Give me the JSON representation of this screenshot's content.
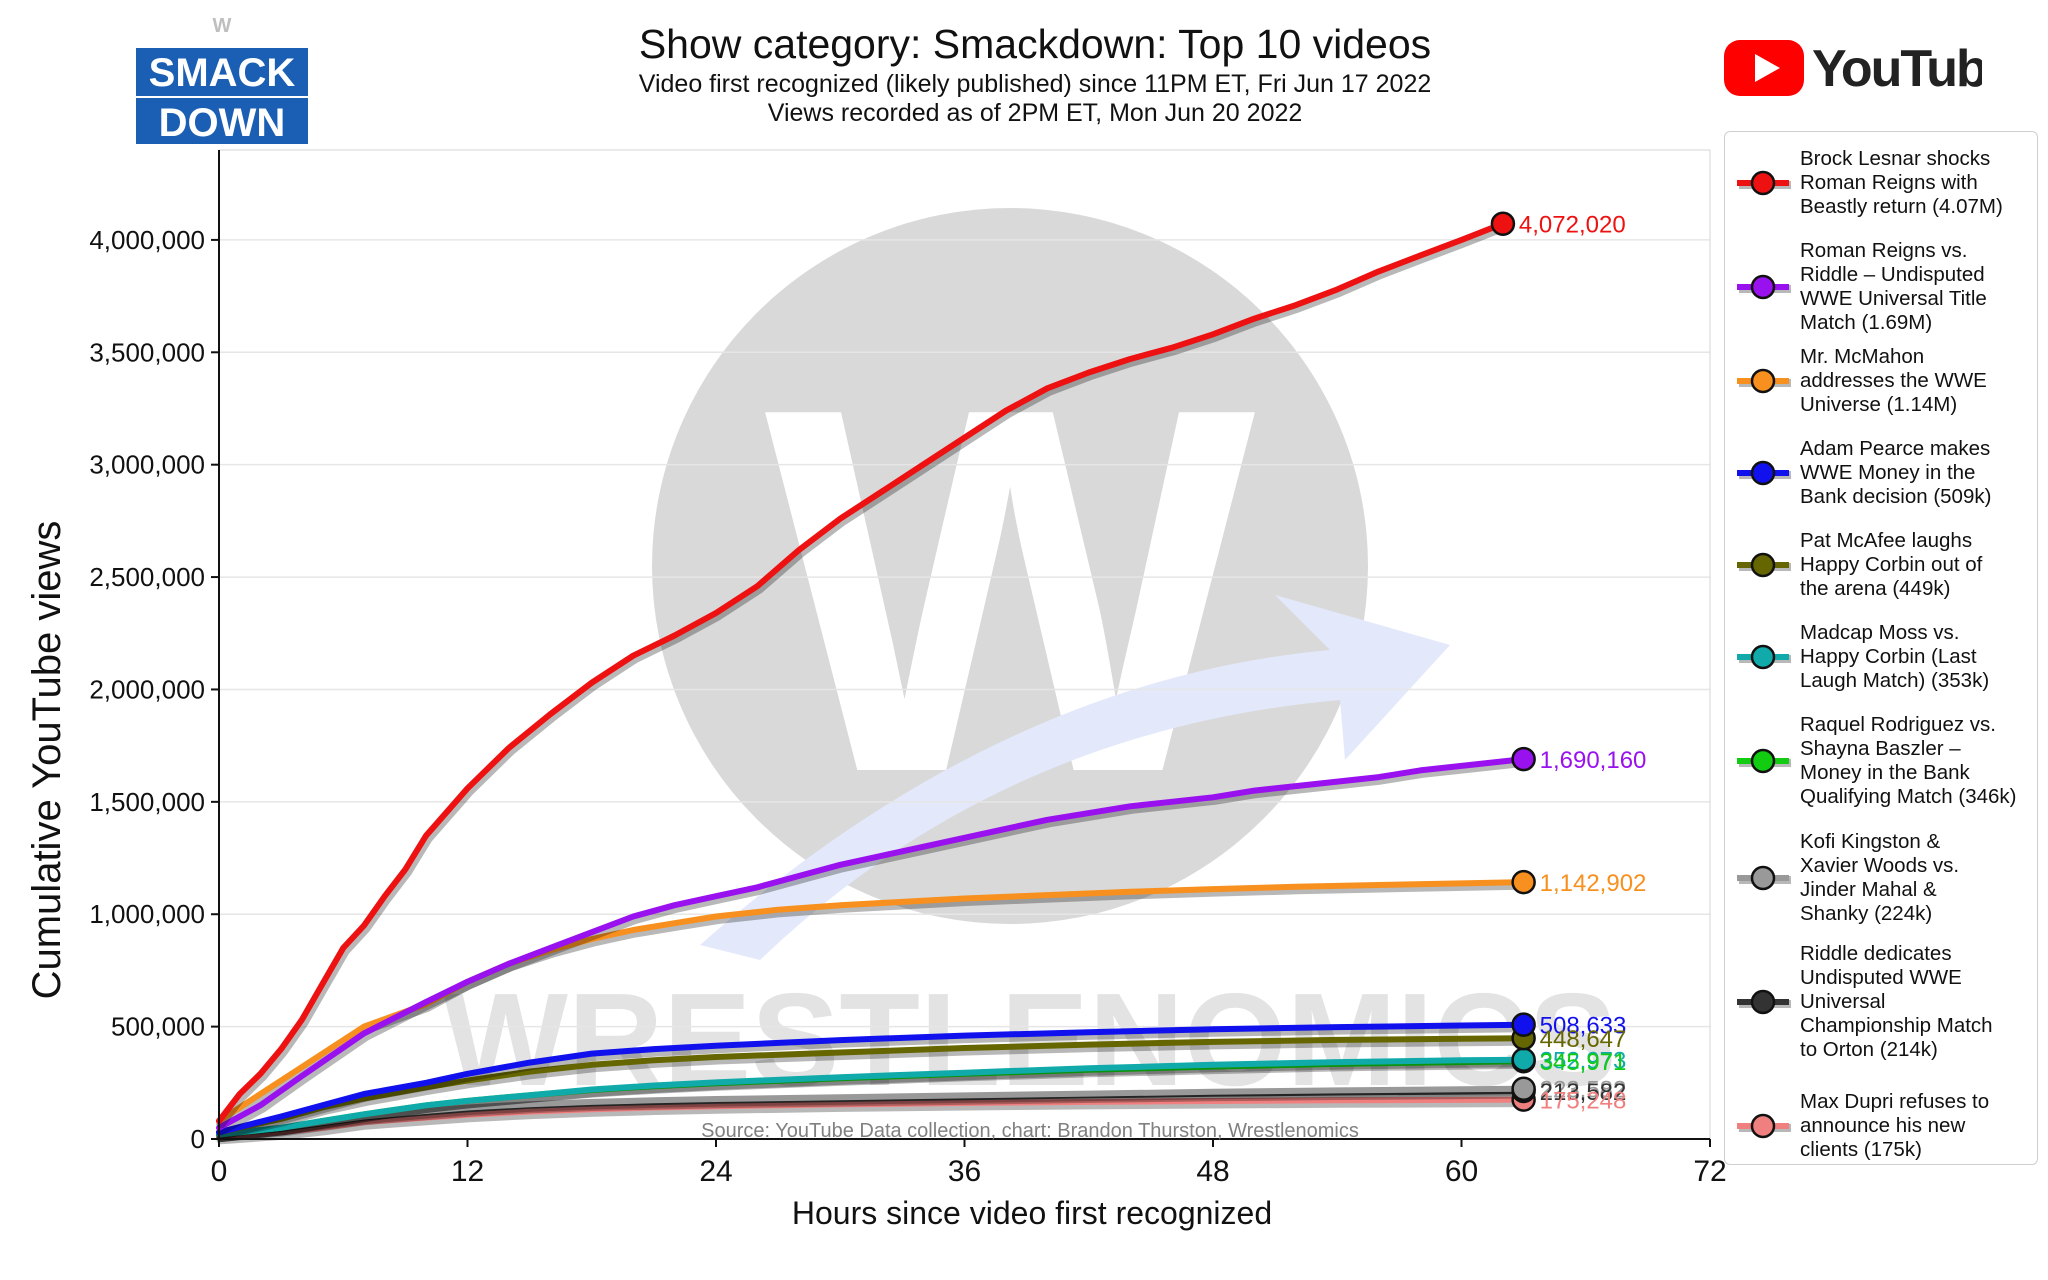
{
  "branding": {
    "smackdown_logo_line1": "SMACK",
    "smackdown_logo_line2": "DOWN",
    "smackdown_logo_mark": "W",
    "youtube_logo_text": "YouTube",
    "watermark_letter": "W",
    "watermark_text": "WRESTLENOMICS"
  },
  "header": {
    "title": "Show category: Smackdown: Top 10 videos",
    "subtitle_line1": "Video first recognized (likely published) since 11PM ET, Fri Jun 17 2022",
    "subtitle_line2": "Views recorded as of 2PM ET, Mon Jun 20 2022"
  },
  "colors": {
    "grid": "#e6e6e6",
    "axis": "#111111",
    "watermark": "#d9d9d9",
    "arrow": "#e3e9fb"
  },
  "chart_data": {
    "type": "line",
    "xlabel": "Hours since video first recognized",
    "ylabel": "Cumulative YouTube views",
    "xlim": [
      0,
      72
    ],
    "ylim": [
      0,
      4400000
    ],
    "x_ticks": [
      0,
      12,
      24,
      36,
      48,
      60,
      72
    ],
    "x_tick_labels": [
      "0",
      "12",
      "24",
      "36",
      "48",
      "60",
      "72"
    ],
    "y_ticks": [
      0,
      500000,
      1000000,
      1500000,
      2000000,
      2500000,
      3000000,
      3500000,
      4000000
    ],
    "y_tick_labels": [
      "0",
      "500,000",
      "1,000,000",
      "1,500,000",
      "2,000,000",
      "2,500,000",
      "3,000,000",
      "3,500,000",
      "4,000,000"
    ],
    "grid": "horizontal",
    "legend_position": "right",
    "source_note": "Source: YouTube    Data collection, chart: Brandon Thurston, Wrestlenomics",
    "series": [
      {
        "name": "Brock Lesnar shocks Roman Reigns with Beastly return (4.07M)",
        "legend_lines": [
          "Brock Lesnar shocks",
          "Roman Reigns with",
          "Beastly return (4.07M)"
        ],
        "color": "#ee1111",
        "end_label": "4,072,020",
        "x": [
          0,
          1,
          2,
          3,
          4,
          5,
          6,
          7,
          8,
          9,
          10,
          12,
          14,
          16,
          18,
          20,
          22,
          24,
          26,
          28,
          30,
          32,
          34,
          36,
          38,
          40,
          42,
          44,
          46,
          48,
          50,
          52,
          54,
          56,
          58,
          60,
          62
        ],
        "y": [
          80000,
          200000,
          290000,
          400000,
          530000,
          690000,
          850000,
          950000,
          1080000,
          1200000,
          1350000,
          1560000,
          1740000,
          1890000,
          2030000,
          2150000,
          2240000,
          2340000,
          2460000,
          2620000,
          2760000,
          2880000,
          3000000,
          3120000,
          3240000,
          3340000,
          3410000,
          3470000,
          3520000,
          3580000,
          3650000,
          3710000,
          3780000,
          3860000,
          3930000,
          4000000,
          4072020
        ]
      },
      {
        "name": "Roman Reigns vs. Riddle – Undisputed WWE Universal Title Match (1.69M)",
        "legend_lines": [
          "Roman Reigns vs.",
          "Riddle – Undisputed",
          "WWE Universal Title",
          "Match (1.69M)"
        ],
        "color": "#9911ee",
        "end_label": "1,690,160",
        "x": [
          0,
          2,
          4,
          7,
          10,
          12,
          14,
          16,
          18,
          20,
          22,
          24,
          26,
          28,
          30,
          32,
          34,
          36,
          38,
          40,
          42,
          44,
          46,
          48,
          50,
          52,
          54,
          56,
          58,
          60,
          63
        ],
        "y": [
          50000,
          150000,
          280000,
          470000,
          610000,
          700000,
          780000,
          850000,
          920000,
          990000,
          1040000,
          1080000,
          1120000,
          1170000,
          1220000,
          1260000,
          1300000,
          1340000,
          1380000,
          1420000,
          1450000,
          1480000,
          1500000,
          1520000,
          1550000,
          1570000,
          1590000,
          1610000,
          1640000,
          1660000,
          1690160
        ]
      },
      {
        "name": "Mr. McMahon addresses the WWE Universe (1.14M)",
        "legend_lines": [
          "Mr. McMahon",
          "addresses the WWE",
          "Universe (1.14M)"
        ],
        "color": "#f7901e",
        "end_label": "1,142,902",
        "x": [
          0,
          2,
          4,
          7,
          10,
          12,
          14,
          16,
          18,
          20,
          22,
          24,
          27,
          30,
          33,
          36,
          40,
          44,
          48,
          52,
          56,
          60,
          63
        ],
        "y": [
          80000,
          200000,
          320000,
          500000,
          600000,
          700000,
          780000,
          840000,
          890000,
          930000,
          960000,
          990000,
          1020000,
          1040000,
          1055000,
          1070000,
          1085000,
          1100000,
          1112000,
          1122000,
          1130000,
          1137000,
          1142902
        ]
      },
      {
        "name": "Adam Pearce makes WWE Money in the Bank decision (509k)",
        "legend_lines": [
          "Adam Pearce makes",
          "WWE Money in the",
          "Bank decision (509k)"
        ],
        "color": "#1111ee",
        "end_label": "508,633",
        "x": [
          0,
          3,
          5,
          7,
          10,
          12,
          15,
          18,
          21,
          24,
          30,
          36,
          42,
          48,
          54,
          60,
          63
        ],
        "y": [
          30000,
          100000,
          150000,
          200000,
          250000,
          290000,
          340000,
          380000,
          400000,
          415000,
          440000,
          460000,
          475000,
          488000,
          498000,
          505000,
          508633
        ]
      },
      {
        "name": "Pat McAfee laughs Happy Corbin out of the arena (449k)",
        "legend_lines": [
          "Pat McAfee laughs",
          "Happy Corbin out of",
          "the arena (449k)"
        ],
        "color": "#666600",
        "end_label": "448,647",
        "x": [
          0,
          3,
          5,
          7,
          10,
          12,
          15,
          18,
          21,
          24,
          30,
          36,
          42,
          48,
          54,
          60,
          63
        ],
        "y": [
          30000,
          90000,
          140000,
          180000,
          230000,
          260000,
          300000,
          330000,
          350000,
          365000,
          385000,
          405000,
          420000,
          432000,
          441000,
          446000,
          448647
        ]
      },
      {
        "name": "Madcap Moss vs. Happy Corbin (Last Laugh Match) (353k)",
        "legend_lines": [
          "Madcap Moss vs.",
          "Happy Corbin (Last",
          "Laugh Match) (353k)"
        ],
        "color": "#11aaaa",
        "end_label": "352,973",
        "x": [
          0,
          3,
          5,
          7,
          10,
          12,
          15,
          18,
          21,
          24,
          30,
          36,
          42,
          48,
          54,
          60,
          63
        ],
        "y": [
          20000,
          50000,
          80000,
          110000,
          150000,
          170000,
          195000,
          220000,
          238000,
          252000,
          275000,
          295000,
          315000,
          330000,
          342000,
          350000,
          352973
        ]
      },
      {
        "name": "Raquel Rodriguez vs. Shayna Baszler – Money in the Bank Qualifying Match (346k)",
        "legend_lines": [
          "Raquel Rodriguez vs.",
          "Shayna Baszler –",
          "Money in the Bank",
          "Qualifying Match (346k)"
        ],
        "color": "#11cc11",
        "end_label": "345,971",
        "x": [
          0,
          3,
          5,
          7,
          10,
          12,
          15,
          18,
          21,
          24,
          30,
          36,
          42,
          48,
          54,
          60,
          63
        ],
        "y": [
          20000,
          50000,
          80000,
          110000,
          150000,
          170000,
          195000,
          218000,
          235000,
          248000,
          270000,
          290000,
          308000,
          322000,
          334000,
          342000,
          345971
        ]
      },
      {
        "name": "Kofi Kingston & Xavier Woods vs. Jinder Mahal & Shanky (224k)",
        "legend_lines": [
          "Kofi Kingston &",
          "Xavier Woods vs.",
          "Jinder Mahal &",
          "Shanky (224k)"
        ],
        "color": "#999999",
        "end_label": "223,582",
        "x": [
          0,
          3,
          5,
          7,
          10,
          12,
          15,
          18,
          21,
          24,
          30,
          36,
          42,
          48,
          54,
          60,
          63
        ],
        "y": [
          20000,
          50000,
          75000,
          100000,
          125000,
          140000,
          155000,
          165000,
          172000,
          178000,
          186000,
          194000,
          202000,
          210000,
          216000,
          221000,
          223582
        ]
      },
      {
        "name": "Riddle dedicates Undisputed WWE Universal Championship Match to Orton (214k)",
        "legend_lines": [
          "Riddle dedicates",
          "Undisputed WWE",
          "Universal",
          "Championship Match",
          "to Orton (214k)"
        ],
        "color": "#333333",
        "end_label": "213,582",
        "x": [
          0,
          3,
          5,
          7,
          10,
          12,
          15,
          18,
          21,
          24,
          30,
          36,
          42,
          48,
          54,
          60,
          63
        ],
        "y": [
          20000,
          45000,
          70000,
          95000,
          118000,
          132000,
          148000,
          158000,
          164000,
          170000,
          178000,
          186000,
          194000,
          201000,
          207000,
          211000,
          213582
        ]
      },
      {
        "name": "Max Dupri refuses to announce his new clients (175k)",
        "legend_lines": [
          "Max Dupri refuses to",
          "announce his new",
          "clients (175k)"
        ],
        "color": "#f08080",
        "end_label": "175,248",
        "x": [
          0,
          3,
          5,
          7,
          10,
          12,
          15,
          18,
          21,
          24,
          30,
          36,
          42,
          48,
          54,
          60,
          63
        ],
        "y": [
          10000,
          30000,
          50000,
          75000,
          95000,
          108000,
          122000,
          132000,
          140000,
          146000,
          154000,
          160000,
          165000,
          169000,
          172000,
          174000,
          175248
        ]
      }
    ]
  }
}
